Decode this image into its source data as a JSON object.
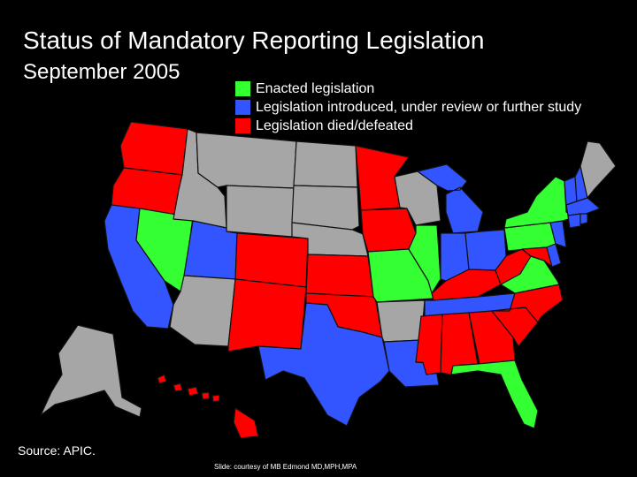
{
  "header": {
    "title": "Status of Mandatory Reporting Legislation",
    "subtitle": "September 2005"
  },
  "legend": [
    {
      "label": "Enacted legislation",
      "color": "#33ff33"
    },
    {
      "label": "Legislation introduced, under review or further study",
      "color": "#3355ff"
    },
    {
      "label": "Legislation died/defeated",
      "color": "#ff0000"
    }
  ],
  "colors": {
    "enacted": "#33ff33",
    "introduced": "#3355ff",
    "died": "#ff0000",
    "none": "#a6a6a6",
    "background": "#000000"
  },
  "map": {
    "states": [
      {
        "name": "Washington",
        "status": "died"
      },
      {
        "name": "Oregon",
        "status": "died"
      },
      {
        "name": "California",
        "status": "introduced"
      },
      {
        "name": "Nevada",
        "status": "enacted"
      },
      {
        "name": "Idaho",
        "status": "none"
      },
      {
        "name": "Montana",
        "status": "none"
      },
      {
        "name": "Wyoming",
        "status": "none"
      },
      {
        "name": "Utah",
        "status": "introduced"
      },
      {
        "name": "Colorado",
        "status": "died"
      },
      {
        "name": "Arizona",
        "status": "none"
      },
      {
        "name": "New Mexico",
        "status": "died"
      },
      {
        "name": "North Dakota",
        "status": "none"
      },
      {
        "name": "South Dakota",
        "status": "none"
      },
      {
        "name": "Nebraska",
        "status": "none"
      },
      {
        "name": "Kansas",
        "status": "died"
      },
      {
        "name": "Oklahoma",
        "status": "died"
      },
      {
        "name": "Texas",
        "status": "introduced"
      },
      {
        "name": "Minnesota",
        "status": "died"
      },
      {
        "name": "Iowa",
        "status": "died"
      },
      {
        "name": "Missouri",
        "status": "enacted"
      },
      {
        "name": "Arkansas",
        "status": "none"
      },
      {
        "name": "Louisiana",
        "status": "introduced"
      },
      {
        "name": "Wisconsin",
        "status": "none"
      },
      {
        "name": "Illinois",
        "status": "enacted"
      },
      {
        "name": "Michigan",
        "status": "introduced"
      },
      {
        "name": "Indiana",
        "status": "introduced"
      },
      {
        "name": "Ohio",
        "status": "introduced"
      },
      {
        "name": "Kentucky",
        "status": "died"
      },
      {
        "name": "Tennessee",
        "status": "introduced"
      },
      {
        "name": "Mississippi",
        "status": "died"
      },
      {
        "name": "Alabama",
        "status": "died"
      },
      {
        "name": "Georgia",
        "status": "died"
      },
      {
        "name": "Florida",
        "status": "enacted"
      },
      {
        "name": "South Carolina",
        "status": "died"
      },
      {
        "name": "North Carolina",
        "status": "died"
      },
      {
        "name": "Virginia",
        "status": "enacted"
      },
      {
        "name": "West Virginia",
        "status": "died"
      },
      {
        "name": "Pennsylvania",
        "status": "enacted"
      },
      {
        "name": "New York",
        "status": "enacted"
      },
      {
        "name": "New Jersey",
        "status": "introduced"
      },
      {
        "name": "Delaware",
        "status": "introduced"
      },
      {
        "name": "Maryland",
        "status": "died"
      },
      {
        "name": "Vermont",
        "status": "introduced"
      },
      {
        "name": "New Hampshire",
        "status": "introduced"
      },
      {
        "name": "Maine",
        "status": "none"
      },
      {
        "name": "Massachusetts",
        "status": "introduced"
      },
      {
        "name": "Connecticut",
        "status": "introduced"
      },
      {
        "name": "Rhode Island",
        "status": "introduced"
      },
      {
        "name": "Alaska",
        "status": "none"
      },
      {
        "name": "Hawaii",
        "status": "died"
      }
    ]
  },
  "footer": {
    "source": "Source: APIC.",
    "credit": "Slide: courtesy of MB Edmond MD,MPH,MPA"
  }
}
